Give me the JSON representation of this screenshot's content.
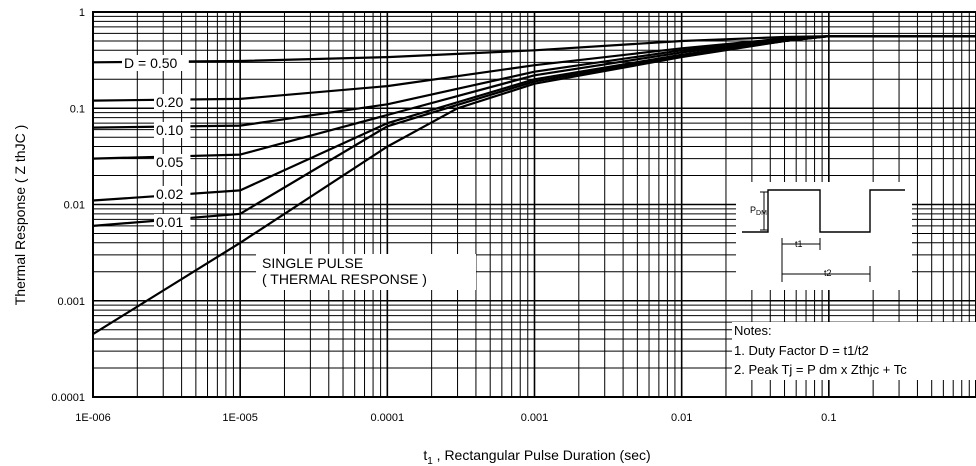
{
  "chart_data": {
    "type": "line",
    "title": "",
    "xlabel": "t1 , Rectangular Pulse Duration (sec)",
    "xlabel_main": "t",
    "xlabel_sub": "1",
    "xlabel_rest": " , Rectangular Pulse Duration (sec)",
    "ylabel": "Thermal Response ( Z thJC )",
    "x_scale": "log",
    "y_scale": "log",
    "xlim": [
      1e-06,
      1
    ],
    "ylim": [
      0.0001,
      1
    ],
    "grid": true,
    "x_tick_labels": [
      "1E-006",
      "1E-005",
      "0.0001",
      "0.001",
      "0.01",
      "0.1"
    ],
    "x_tick_values": [
      1e-06,
      1e-05,
      0.0001,
      0.001,
      0.01,
      0.1
    ],
    "y_tick_labels": [
      "1",
      "0.1",
      "0.01",
      "0.001",
      "0.0001"
    ],
    "y_tick_values": [
      1,
      0.1,
      0.01,
      0.001,
      0.0001
    ],
    "series": [
      {
        "name": "D = 0.50",
        "x": [
          1e-06,
          1e-05,
          0.0001,
          0.001,
          0.01,
          0.05,
          0.1,
          1
        ],
        "y": [
          0.3,
          0.31,
          0.34,
          0.4,
          0.5,
          0.55,
          0.56,
          0.56
        ]
      },
      {
        "name": "0.20",
        "x": [
          1e-06,
          1e-05,
          0.0001,
          0.001,
          0.01,
          0.05,
          0.1,
          1
        ],
        "y": [
          0.12,
          0.125,
          0.17,
          0.28,
          0.42,
          0.53,
          0.56,
          0.56
        ]
      },
      {
        "name": "0.10",
        "x": [
          1e-06,
          1e-05,
          0.0001,
          0.001,
          0.01,
          0.05,
          0.1,
          1
        ],
        "y": [
          0.063,
          0.066,
          0.11,
          0.24,
          0.4,
          0.52,
          0.56,
          0.56
        ]
      },
      {
        "name": "0.05",
        "x": [
          1e-06,
          1e-05,
          0.0001,
          0.001,
          0.01,
          0.05,
          0.1,
          1
        ],
        "y": [
          0.03,
          0.033,
          0.085,
          0.22,
          0.38,
          0.51,
          0.56,
          0.56
        ]
      },
      {
        "name": "0.02",
        "x": [
          1e-06,
          1e-05,
          0.0001,
          0.001,
          0.01,
          0.05,
          0.1,
          1
        ],
        "y": [
          0.011,
          0.014,
          0.07,
          0.2,
          0.36,
          0.5,
          0.56,
          0.56
        ]
      },
      {
        "name": "0.01",
        "x": [
          1e-06,
          1e-05,
          0.0001,
          0.001,
          0.01,
          0.05,
          0.1,
          1
        ],
        "y": [
          0.006,
          0.008,
          0.065,
          0.19,
          0.35,
          0.5,
          0.56,
          0.56
        ]
      },
      {
        "name": "SINGLE PULSE",
        "x": [
          1e-06,
          1e-05,
          0.0001,
          0.0003,
          0.001,
          0.01,
          0.05,
          0.1,
          1
        ],
        "y": [
          0.00045,
          0.004,
          0.04,
          0.1,
          0.18,
          0.34,
          0.5,
          0.56,
          0.56
        ]
      }
    ],
    "curve_labels": [
      "D = 0.50",
      "0.20",
      "0.10",
      "0.05",
      "0.02",
      "0.01"
    ],
    "annotations": {
      "single_pulse_line1": "SINGLE PULSE",
      "single_pulse_line2": "( THERMAL RESPONSE )",
      "notes_title": "Notes:",
      "note1": "1. Duty Factor D = t1/t2",
      "note2": "2. Peak Tj = P dm x Zthjc + Tc",
      "pulse_p": "P",
      "pulse_dm": "DM",
      "pulse_t1": "t1",
      "pulse_t2": "t2"
    }
  }
}
